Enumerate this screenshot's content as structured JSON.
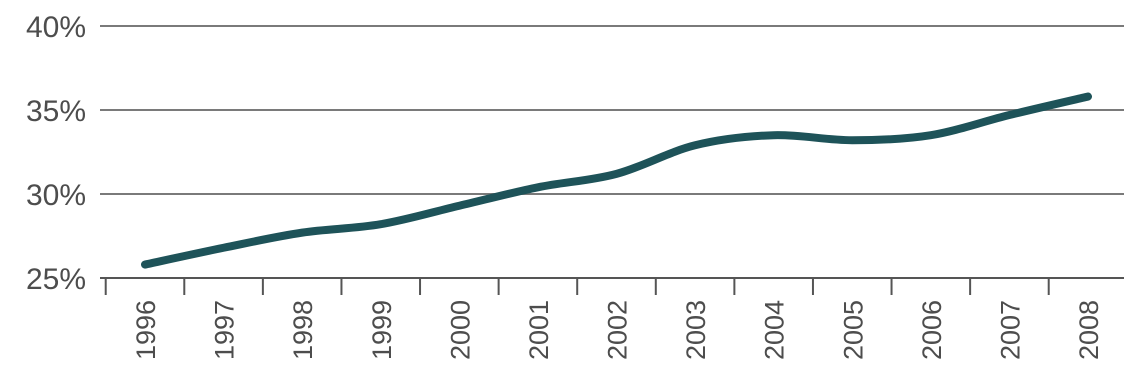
{
  "chart_data": {
    "type": "line",
    "title": "",
    "xlabel": "",
    "ylabel": "",
    "categories": [
      "1996",
      "1997",
      "1998",
      "1999",
      "2000",
      "2001",
      "2002",
      "2003",
      "2004",
      "2005",
      "2006",
      "2007",
      "2008"
    ],
    "series": [
      {
        "values": [
          25.8,
          26.8,
          27.7,
          28.2,
          29.3,
          30.4,
          31.2,
          32.9,
          33.5,
          33.2,
          33.5,
          34.7,
          35.8
        ]
      }
    ],
    "yticks": [
      25,
      30,
      35,
      40
    ],
    "ytick_labels": [
      "25%",
      "30%",
      "35%",
      "40%"
    ],
    "ylim": [
      25,
      40
    ],
    "grid": true,
    "legend": "none",
    "colors": {
      "line": "#1e5359",
      "grid": "#7a7a7a",
      "axis": "#555555",
      "text": "#4d4d4d"
    }
  }
}
